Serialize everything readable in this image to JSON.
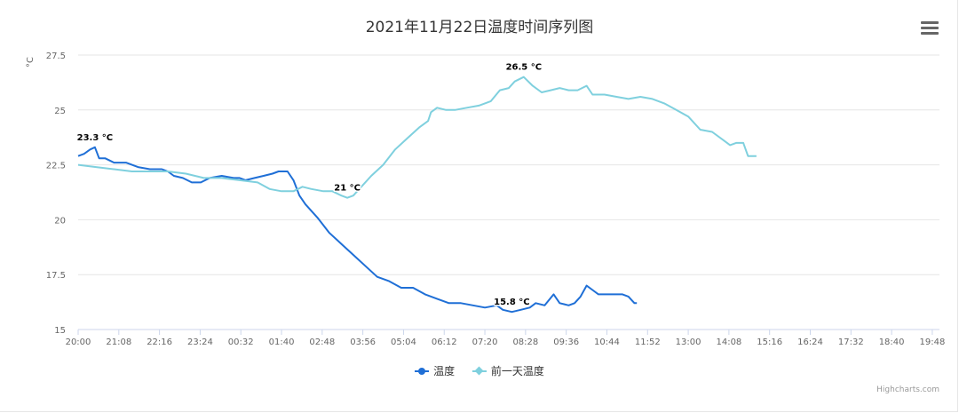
{
  "title": "2021年11月22日温度时间序列图",
  "credits": "Highcharts.com",
  "menu_icon": "hamburger-menu-icon",
  "chart_data": {
    "type": "line",
    "ylabel": "°C",
    "ylim": [
      15,
      27.5
    ],
    "yticks": [
      15,
      17.5,
      20,
      22.5,
      25,
      27.5
    ],
    "ytick_labels": [
      "15",
      "17.5",
      "20",
      "22.5",
      "25",
      "27.5"
    ],
    "x_range_minutes": [
      1200,
      2640
    ],
    "xticks_minutes": [
      1200,
      1268,
      1336,
      1404,
      1472,
      1540,
      1608,
      1676,
      1744,
      1812,
      1880,
      1948,
      2016,
      2084,
      2152,
      2220,
      2288,
      2356,
      2424,
      2492,
      2560,
      2628
    ],
    "xtick_labels": [
      "20:00",
      "21:08",
      "22:16",
      "23:24",
      "00:32",
      "01:40",
      "02:48",
      "03:56",
      "05:04",
      "06:12",
      "07:20",
      "08:28",
      "09:36",
      "10:44",
      "11:52",
      "13:00",
      "14:08",
      "15:16",
      "16:24",
      "17:32",
      "18:40",
      "19:48"
    ],
    "grid": true,
    "legend_position": "bottom-center",
    "series": [
      {
        "name": "温度",
        "color": "#1f6fd6",
        "marker": "circle",
        "points": [
          [
            1200,
            22.9
          ],
          [
            1210,
            23.0
          ],
          [
            1220,
            23.2
          ],
          [
            1228,
            23.3
          ],
          [
            1235,
            22.8
          ],
          [
            1245,
            22.8
          ],
          [
            1260,
            22.6
          ],
          [
            1280,
            22.6
          ],
          [
            1300,
            22.4
          ],
          [
            1320,
            22.3
          ],
          [
            1340,
            22.3
          ],
          [
            1350,
            22.2
          ],
          [
            1360,
            22.0
          ],
          [
            1375,
            21.9
          ],
          [
            1390,
            21.7
          ],
          [
            1405,
            21.7
          ],
          [
            1420,
            21.9
          ],
          [
            1440,
            22.0
          ],
          [
            1460,
            21.9
          ],
          [
            1470,
            21.9
          ],
          [
            1480,
            21.8
          ],
          [
            1495,
            21.9
          ],
          [
            1510,
            22.0
          ],
          [
            1525,
            22.1
          ],
          [
            1535,
            22.2
          ],
          [
            1550,
            22.2
          ],
          [
            1560,
            21.8
          ],
          [
            1570,
            21.1
          ],
          [
            1580,
            20.7
          ],
          [
            1600,
            20.1
          ],
          [
            1620,
            19.4
          ],
          [
            1640,
            18.9
          ],
          [
            1660,
            18.4
          ],
          [
            1680,
            17.9
          ],
          [
            1700,
            17.4
          ],
          [
            1720,
            17.2
          ],
          [
            1740,
            16.9
          ],
          [
            1760,
            16.9
          ],
          [
            1780,
            16.6
          ],
          [
            1800,
            16.4
          ],
          [
            1820,
            16.2
          ],
          [
            1840,
            16.2
          ],
          [
            1860,
            16.1
          ],
          [
            1880,
            16.0
          ],
          [
            1900,
            16.1
          ],
          [
            1910,
            15.9
          ],
          [
            1925,
            15.8
          ],
          [
            1940,
            15.9
          ],
          [
            1955,
            16.0
          ],
          [
            1965,
            16.2
          ],
          [
            1980,
            16.1
          ],
          [
            1995,
            16.6
          ],
          [
            2005,
            16.2
          ],
          [
            2020,
            16.1
          ],
          [
            2030,
            16.2
          ],
          [
            2040,
            16.5
          ],
          [
            2050,
            17.0
          ],
          [
            2060,
            16.8
          ],
          [
            2070,
            16.6
          ],
          [
            2090,
            16.6
          ],
          [
            2110,
            16.6
          ],
          [
            2120,
            16.5
          ],
          [
            2130,
            16.2
          ],
          [
            2134,
            16.2
          ]
        ]
      },
      {
        "name": "前一天温度",
        "color": "#7fd0de",
        "marker": "diamond",
        "points": [
          [
            1200,
            22.5
          ],
          [
            1230,
            22.4
          ],
          [
            1260,
            22.3
          ],
          [
            1290,
            22.2
          ],
          [
            1320,
            22.2
          ],
          [
            1350,
            22.2
          ],
          [
            1380,
            22.1
          ],
          [
            1410,
            21.9
          ],
          [
            1440,
            21.9
          ],
          [
            1470,
            21.8
          ],
          [
            1500,
            21.7
          ],
          [
            1520,
            21.4
          ],
          [
            1540,
            21.3
          ],
          [
            1560,
            21.3
          ],
          [
            1575,
            21.5
          ],
          [
            1590,
            21.4
          ],
          [
            1610,
            21.3
          ],
          [
            1625,
            21.3
          ],
          [
            1640,
            21.1
          ],
          [
            1650,
            21.0
          ],
          [
            1660,
            21.1
          ],
          [
            1670,
            21.4
          ],
          [
            1690,
            22.0
          ],
          [
            1710,
            22.5
          ],
          [
            1730,
            23.2
          ],
          [
            1750,
            23.7
          ],
          [
            1770,
            24.2
          ],
          [
            1785,
            24.5
          ],
          [
            1790,
            24.9
          ],
          [
            1800,
            25.1
          ],
          [
            1815,
            25.0
          ],
          [
            1830,
            25.0
          ],
          [
            1850,
            25.1
          ],
          [
            1870,
            25.2
          ],
          [
            1890,
            25.4
          ],
          [
            1905,
            25.9
          ],
          [
            1920,
            26.0
          ],
          [
            1930,
            26.3
          ],
          [
            1945,
            26.5
          ],
          [
            1960,
            26.1
          ],
          [
            1975,
            25.8
          ],
          [
            1990,
            25.9
          ],
          [
            2005,
            26.0
          ],
          [
            2020,
            25.9
          ],
          [
            2035,
            25.9
          ],
          [
            2050,
            26.1
          ],
          [
            2060,
            25.7
          ],
          [
            2080,
            25.7
          ],
          [
            2100,
            25.6
          ],
          [
            2120,
            25.5
          ],
          [
            2140,
            25.6
          ],
          [
            2160,
            25.5
          ],
          [
            2180,
            25.3
          ],
          [
            2200,
            25.0
          ],
          [
            2220,
            24.7
          ],
          [
            2240,
            24.1
          ],
          [
            2260,
            24.0
          ],
          [
            2280,
            23.6
          ],
          [
            2290,
            23.4
          ],
          [
            2300,
            23.5
          ],
          [
            2312,
            23.5
          ],
          [
            2320,
            22.9
          ],
          [
            2334,
            22.9
          ]
        ]
      }
    ],
    "data_labels": [
      {
        "series": 0,
        "x": 1228,
        "y": 23.3,
        "text": "23.3 °C"
      },
      {
        "series": 0,
        "x": 1925,
        "y": 15.8,
        "text": "15.8 °C"
      },
      {
        "series": 1,
        "x": 1650,
        "y": 21.0,
        "text": "21 °C"
      },
      {
        "series": 1,
        "x": 1945,
        "y": 26.5,
        "text": "26.5 °C"
      }
    ]
  }
}
